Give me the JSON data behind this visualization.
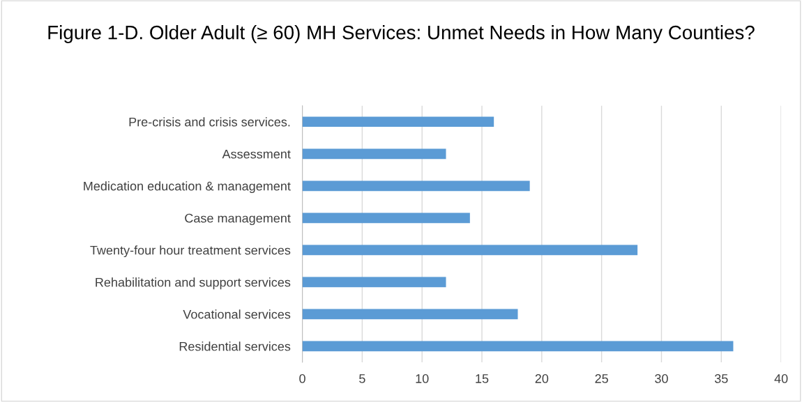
{
  "chart_data": {
    "type": "bar",
    "orientation": "horizontal",
    "title": "Figure 1-D. Older Adult (≥ 60) MH Services: Unmet Needs in How Many Counties?",
    "categories": [
      "Pre-crisis and crisis services.",
      "Assessment",
      "Medication education & management",
      "Case management",
      "Twenty-four hour treatment services",
      "Rehabilitation and support services",
      "Vocational services",
      "Residential services"
    ],
    "values": [
      16,
      12,
      19,
      14,
      28,
      12,
      18,
      36
    ],
    "color": "#5b9bd5",
    "xlim": [
      0,
      40
    ],
    "xticks": [
      0,
      5,
      10,
      15,
      20,
      25,
      30,
      35,
      40
    ],
    "grid": "x",
    "legend": false
  }
}
